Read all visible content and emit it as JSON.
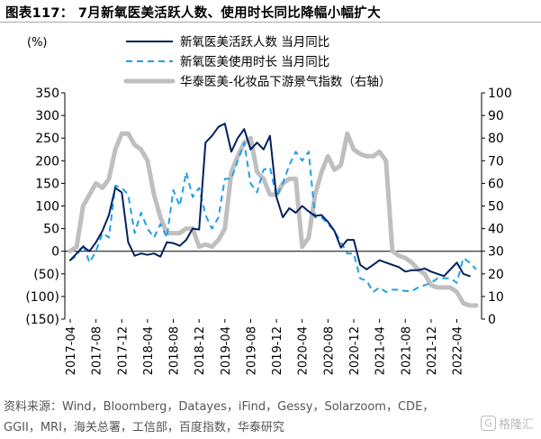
{
  "header": {
    "title": "图表117：  7月新氧医美活跃人数、使用时长同比降幅小幅扩大"
  },
  "footer": {
    "source_line1": "资料来源：Wind，Bloomberg，Datayes，iFind，Gessy，Solarzoom，CDE，",
    "source_line2": "GGII，MRI，海关总署，工信部，百度指数，华泰研究"
  },
  "watermark": {
    "text": "格隆汇",
    "icon": "G"
  },
  "chart_data": {
    "type": "line",
    "left_unit": "(%)",
    "y_left_lim": [
      -150,
      350
    ],
    "y_left_ticks": [
      "350",
      "300",
      "250",
      "200",
      "150",
      "100",
      "50",
      "0",
      "(50)",
      "(100)",
      "(150)"
    ],
    "y_right_lim": [
      0,
      100
    ],
    "y_right_ticks": [
      "100",
      "90",
      "80",
      "70",
      "60",
      "50",
      "40",
      "30",
      "20",
      "10",
      "0"
    ],
    "x_tick_labels": [
      "2017-04",
      "2017-08",
      "2017-12",
      "2018-04",
      "2018-08",
      "2018-12",
      "2019-04",
      "2019-08",
      "2019-12",
      "2020-04",
      "2020-08",
      "2020-12",
      "2021-04",
      "2021-08",
      "2021-12",
      "2022-04"
    ],
    "x": [
      "2017-04",
      "2017-05",
      "2017-06",
      "2017-07",
      "2017-08",
      "2017-09",
      "2017-10",
      "2017-11",
      "2017-12",
      "2018-01",
      "2018-02",
      "2018-03",
      "2018-04",
      "2018-05",
      "2018-06",
      "2018-07",
      "2018-08",
      "2018-09",
      "2018-10",
      "2018-11",
      "2018-12",
      "2019-01",
      "2019-02",
      "2019-03",
      "2019-04",
      "2019-05",
      "2019-06",
      "2019-07",
      "2019-08",
      "2019-09",
      "2019-10",
      "2019-11",
      "2019-12",
      "2020-01",
      "2020-02",
      "2020-03",
      "2020-04",
      "2020-05",
      "2020-06",
      "2020-07",
      "2020-08",
      "2020-09",
      "2020-10",
      "2020-11",
      "2020-12",
      "2021-01",
      "2021-02",
      "2021-03",
      "2021-04",
      "2021-05",
      "2021-06",
      "2021-07",
      "2021-08",
      "2021-09",
      "2021-10",
      "2021-11",
      "2021-12",
      "2022-01",
      "2022-02",
      "2022-03",
      "2022-04",
      "2022-05",
      "2022-06",
      "2022-07"
    ],
    "series": [
      {
        "name": "新氧医美活跃人数 当月同比",
        "axis": "left",
        "color": "#002060",
        "style": "solid",
        "values": [
          -20,
          -5,
          10,
          0,
          20,
          45,
          80,
          140,
          130,
          20,
          -10,
          -5,
          -8,
          -5,
          -12,
          20,
          18,
          12,
          25,
          50,
          48,
          240,
          255,
          275,
          282,
          220,
          250,
          270,
          225,
          240,
          225,
          255,
          120,
          75,
          95,
          85,
          100,
          88,
          78,
          80,
          65,
          45,
          8,
          25,
          25,
          -30,
          -40,
          -30,
          -20,
          -25,
          -30,
          -35,
          -45,
          -42,
          -42,
          -38,
          -45,
          -50,
          -55,
          -40,
          -25,
          -50,
          -55,
          null
        ]
      },
      {
        "name": "新氧医美使用时长 当月同比",
        "axis": "left",
        "color": "#1ea0e6",
        "style": "dashed",
        "values": [
          -20,
          -10,
          15,
          -25,
          0,
          40,
          30,
          145,
          140,
          125,
          40,
          85,
          50,
          30,
          60,
          30,
          135,
          100,
          175,
          120,
          140,
          80,
          50,
          75,
          160,
          160,
          200,
          240,
          150,
          130,
          180,
          185,
          120,
          150,
          190,
          220,
          200,
          220,
          75,
          75,
          60,
          45,
          20,
          -5,
          -5,
          -60,
          -65,
          -90,
          -80,
          -90,
          -85,
          -85,
          -88,
          -88,
          -80,
          -75,
          -70,
          -60,
          -60,
          -60,
          -70,
          -15,
          -25,
          -40
        ]
      },
      {
        "name": "华泰医美-化妆品下游景气指数（右轴）",
        "axis": "right",
        "color": "#bfbfbf",
        "style": "solid-thick",
        "values": [
          30,
          32,
          50,
          55,
          60,
          58,
          62,
          75,
          82,
          82,
          77,
          75,
          70,
          55,
          45,
          38,
          38,
          38,
          40,
          40,
          32,
          33,
          32,
          35,
          40,
          65,
          72,
          78,
          80,
          65,
          62,
          55,
          55,
          60,
          62,
          62,
          32,
          36,
          55,
          65,
          72,
          66,
          68,
          82,
          75,
          73,
          72,
          72,
          74,
          70,
          30,
          28,
          27,
          25,
          22,
          20,
          15,
          14,
          14,
          14,
          12,
          7,
          6,
          6
        ]
      }
    ],
    "legend_position": "top-center",
    "grid": false
  }
}
